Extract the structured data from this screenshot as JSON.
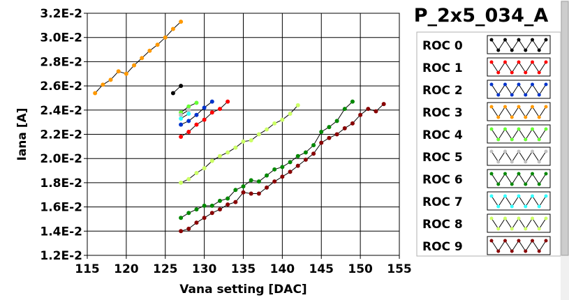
{
  "chart_data": {
    "type": "line",
    "title": "P_2x5_034_A",
    "xlabel": "Vana setting [DAC]",
    "ylabel": "Iana [A]",
    "xlim": [
      115,
      155
    ],
    "ylim": [
      0.012,
      0.032
    ],
    "xticks": [
      "115",
      "120",
      "125",
      "130",
      "135",
      "140",
      "145",
      "150",
      "155"
    ],
    "yticks": [
      "1.2E-2",
      "1.4E-2",
      "1.6E-2",
      "1.8E-2",
      "2.0E-2",
      "2.2E-2",
      "2.4E-2",
      "2.6E-2",
      "2.8E-2",
      "3.0E-2",
      "3.2E-2"
    ],
    "grid": true,
    "legend_placement": "right",
    "series": [
      {
        "name": "ROC 0",
        "color": "#000000",
        "x": [
          126,
          127
        ],
        "y": [
          0.0254,
          0.026
        ]
      },
      {
        "name": "ROC 1",
        "color": "#ff0000",
        "x": [
          127,
          128,
          129,
          130,
          131,
          132,
          133
        ],
        "y": [
          0.0218,
          0.0222,
          0.0228,
          0.0232,
          0.0238,
          0.0241,
          0.0247
        ]
      },
      {
        "name": "ROC 2",
        "color": "#0033cc",
        "x": [
          127,
          128,
          129,
          130,
          131
        ],
        "y": [
          0.0228,
          0.0231,
          0.0236,
          0.0242,
          0.0247
        ]
      },
      {
        "name": "ROC 3",
        "color": "#ff9900",
        "x": [
          116,
          117,
          118,
          119,
          120,
          121,
          122,
          123,
          124,
          125,
          126,
          127
        ],
        "y": [
          0.0254,
          0.0261,
          0.0265,
          0.0272,
          0.027,
          0.0277,
          0.0283,
          0.0289,
          0.0294,
          0.03,
          0.0307,
          0.0313
        ]
      },
      {
        "name": "ROC 4",
        "color": "#66ff33",
        "x": [
          127,
          128,
          129
        ],
        "y": [
          0.0238,
          0.0243,
          0.0246
        ]
      },
      {
        "name": "ROC 5",
        "color": "#c0c0c0",
        "x": [
          127,
          128
        ],
        "y": [
          0.0236,
          0.024
        ]
      },
      {
        "name": "ROC 6",
        "color": "#008800",
        "x": [
          127,
          128,
          129,
          130,
          131,
          132,
          133,
          134,
          135,
          136,
          137,
          138,
          139,
          140,
          141,
          142,
          143,
          144,
          145,
          146,
          147,
          148,
          149
        ],
        "y": [
          0.0151,
          0.0155,
          0.0158,
          0.0161,
          0.0161,
          0.0165,
          0.0167,
          0.0174,
          0.0177,
          0.0182,
          0.0181,
          0.0186,
          0.0191,
          0.0193,
          0.0197,
          0.0202,
          0.0205,
          0.0211,
          0.0222,
          0.0226,
          0.0231,
          0.0241,
          0.0247
        ]
      },
      {
        "name": "ROC 7",
        "color": "#33ffff",
        "x": [
          127,
          128
        ],
        "y": [
          0.0233,
          0.0237
        ]
      },
      {
        "name": "ROC 8",
        "color": "#ccff66",
        "x": [
          127,
          128,
          129,
          130,
          131,
          132,
          133,
          134,
          135,
          136,
          137,
          138,
          139,
          140,
          141,
          142
        ],
        "y": [
          0.018,
          0.0183,
          0.0188,
          0.0192,
          0.0198,
          0.0202,
          0.0205,
          0.0209,
          0.0214,
          0.0215,
          0.022,
          0.0224,
          0.0229,
          0.0232,
          0.0237,
          0.0244
        ]
      },
      {
        "name": "ROC 9",
        "color": "#880000",
        "x": [
          127,
          128,
          129,
          130,
          131,
          132,
          133,
          134,
          135,
          136,
          137,
          138,
          139,
          140,
          141,
          142,
          143,
          144,
          145,
          146,
          147,
          148,
          149,
          150,
          151,
          152,
          153
        ],
        "y": [
          0.014,
          0.0142,
          0.0147,
          0.0151,
          0.0155,
          0.0158,
          0.0162,
          0.0164,
          0.0172,
          0.0171,
          0.0171,
          0.0176,
          0.0181,
          0.0185,
          0.0189,
          0.0194,
          0.0199,
          0.0204,
          0.0213,
          0.0217,
          0.022,
          0.0225,
          0.0229,
          0.0236,
          0.0241,
          0.0239,
          0.0245
        ]
      }
    ]
  }
}
